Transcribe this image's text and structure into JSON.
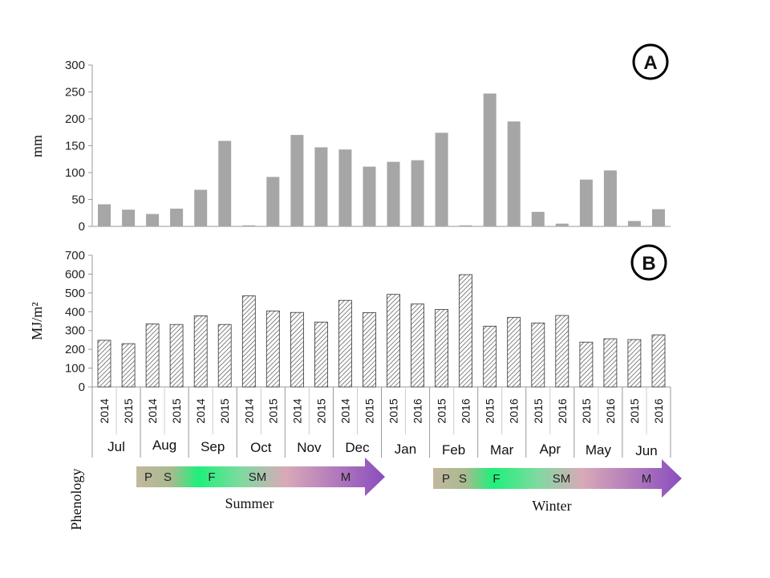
{
  "chart_data": [
    {
      "type": "bar",
      "panel_label": "A",
      "ylabel": "mm",
      "ylim": [
        0,
        300
      ],
      "yticks": [
        "0",
        "50",
        "100",
        "150",
        "200",
        "250",
        "300"
      ],
      "fill": "#a6a6a6",
      "pattern": "solid",
      "categories": [
        "2014",
        "2015",
        "2014",
        "2015",
        "2014",
        "2015",
        "2014",
        "2015",
        "2014",
        "2015",
        "2014",
        "2015",
        "2015",
        "2016",
        "2015",
        "2016",
        "2015",
        "2016",
        "2015",
        "2016",
        "2015",
        "2016",
        "2015",
        "2016"
      ],
      "values": [
        41,
        31,
        23,
        33,
        68,
        159,
        2,
        92,
        170,
        147,
        143,
        111,
        120,
        123,
        174,
        2,
        247,
        195,
        27,
        5,
        87,
        104,
        10,
        32
      ]
    },
    {
      "type": "bar",
      "panel_label": "B",
      "ylabel": "MJ/m²",
      "ylim": [
        0,
        700
      ],
      "yticks": [
        "0",
        "100",
        "200",
        "300",
        "400",
        "500",
        "600",
        "700"
      ],
      "fill": "#ffffff",
      "pattern": "hatched",
      "categories": [
        "2014",
        "2015",
        "2014",
        "2015",
        "2014",
        "2015",
        "2014",
        "2015",
        "2014",
        "2015",
        "2014",
        "2015",
        "2015",
        "2016",
        "2015",
        "2016",
        "2015",
        "2016",
        "2015",
        "2016",
        "2015",
        "2016",
        "2015",
        "2016"
      ],
      "values": [
        248,
        230,
        335,
        332,
        378,
        332,
        484,
        404,
        396,
        345,
        460,
        395,
        492,
        441,
        412,
        597,
        323,
        370,
        340,
        380,
        238,
        256,
        252,
        277
      ]
    }
  ],
  "months": [
    "Jul",
    "Aug",
    "Sep",
    "Oct",
    "Nov",
    "Dec",
    "Jan",
    "Feb",
    "Mar",
    "Apr",
    "May",
    "Jun"
  ],
  "phenology": {
    "label": "Phenology",
    "summer": {
      "name": "Summer",
      "stages": [
        "P",
        "S",
        "F",
        "SM",
        "M"
      ]
    },
    "winter": {
      "name": "Winter",
      "stages": [
        "P",
        "S",
        "F",
        "SM",
        "M"
      ]
    },
    "colors": {
      "start": "#c2b89e",
      "green": "#1ef07a",
      "pink": "#d9a9b8",
      "purple": "#8a4dbf"
    }
  }
}
